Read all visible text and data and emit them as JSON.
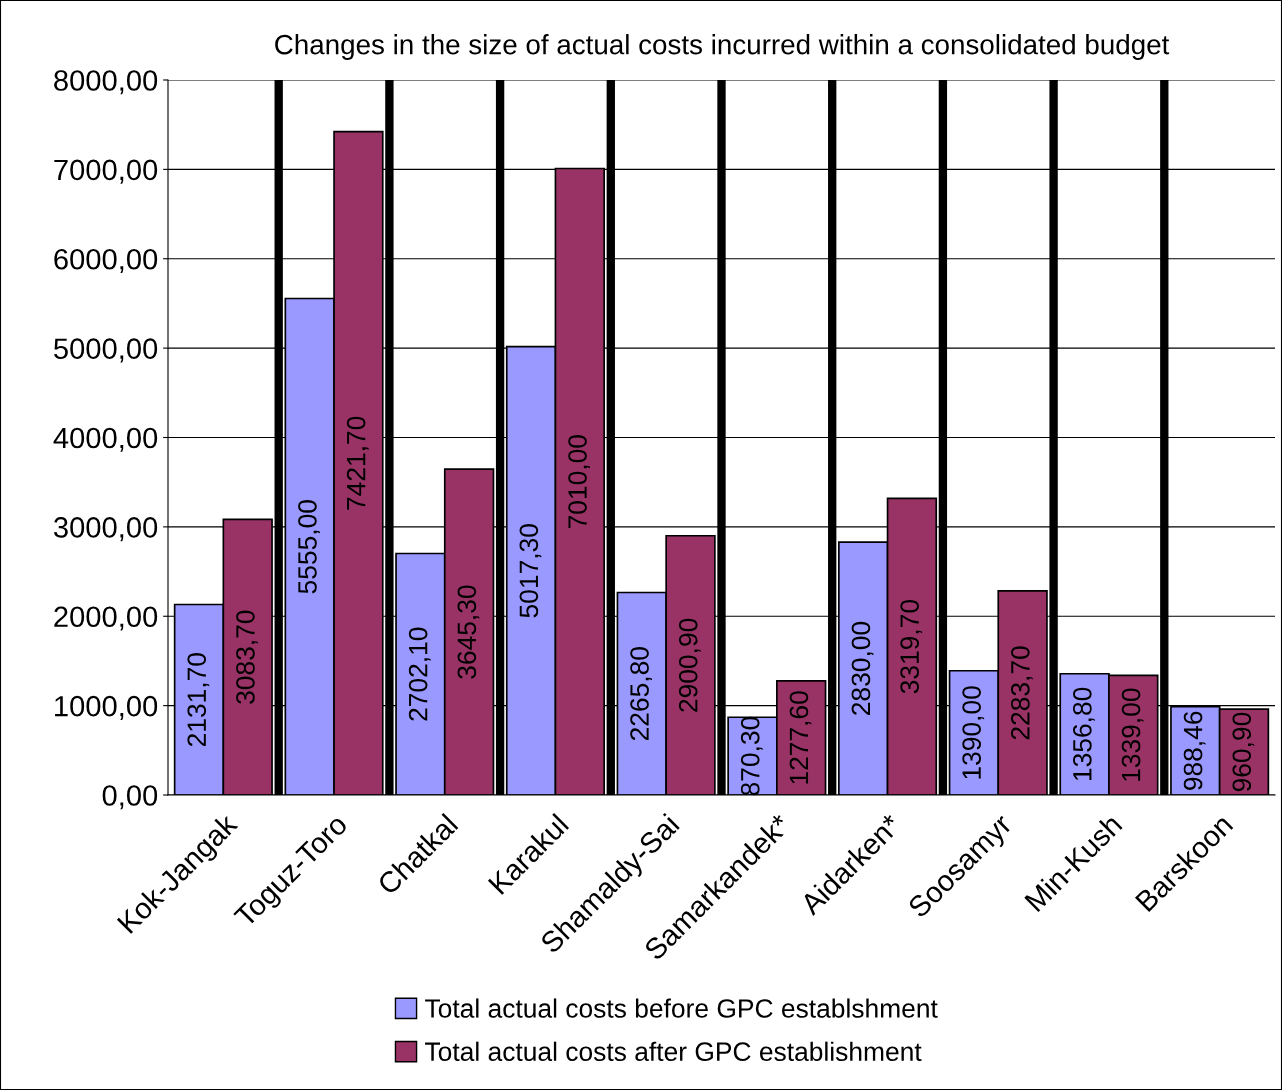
{
  "chart_data": {
    "type": "bar",
    "title": "Changes in the size of actual costs incurred within a consolidated budget",
    "categories": [
      "Kok-Jangak",
      "Toguz-Toro",
      "Chatkal",
      "Karakul",
      "Shamaldy-Sai",
      "Samarkandek*",
      "Aidarken*",
      "Soosamyr",
      "Min-Kush",
      "Barskoon"
    ],
    "series": [
      {
        "name": "Total actual costs before GPC establshment",
        "color": "#9999ff",
        "values": [
          2131.7,
          5555.0,
          2702.1,
          5017.3,
          2265.8,
          870.3,
          2830.0,
          1390.0,
          1356.8,
          988.46
        ],
        "value_labels": [
          "2131,70",
          "5555,00",
          "2702,10",
          "5017,30",
          "2265,80",
          "870,30",
          "2830,00",
          "1390,00",
          "1356,80",
          "988,46"
        ]
      },
      {
        "name": "Total actual costs after GPC establishment",
        "color": "#993366",
        "values": [
          3083.7,
          7421.7,
          3645.3,
          7010.0,
          2900.9,
          1277.6,
          3319.7,
          2283.7,
          1339.0,
          960.9
        ],
        "value_labels": [
          "3083,70",
          "7421,70",
          "3645,30",
          "7010,00",
          "2900,90",
          "1277,60",
          "3319,70",
          "2283,70",
          "1339,00",
          "960,90"
        ]
      }
    ],
    "ylim": [
      0,
      8000
    ],
    "yticks": [
      {
        "value": 0,
        "label": "0,00"
      },
      {
        "value": 1000,
        "label": "1000,00"
      },
      {
        "value": 2000,
        "label": "2000,00"
      },
      {
        "value": 3000,
        "label": "3000,00"
      },
      {
        "value": 4000,
        "label": "4000,00"
      },
      {
        "value": 5000,
        "label": "5000,00"
      },
      {
        "value": 6000,
        "label": "6000,00"
      },
      {
        "value": 7000,
        "label": "7000,00"
      },
      {
        "value": 8000,
        "label": "8000,00"
      }
    ],
    "grid": true,
    "legend": "bottom"
  }
}
